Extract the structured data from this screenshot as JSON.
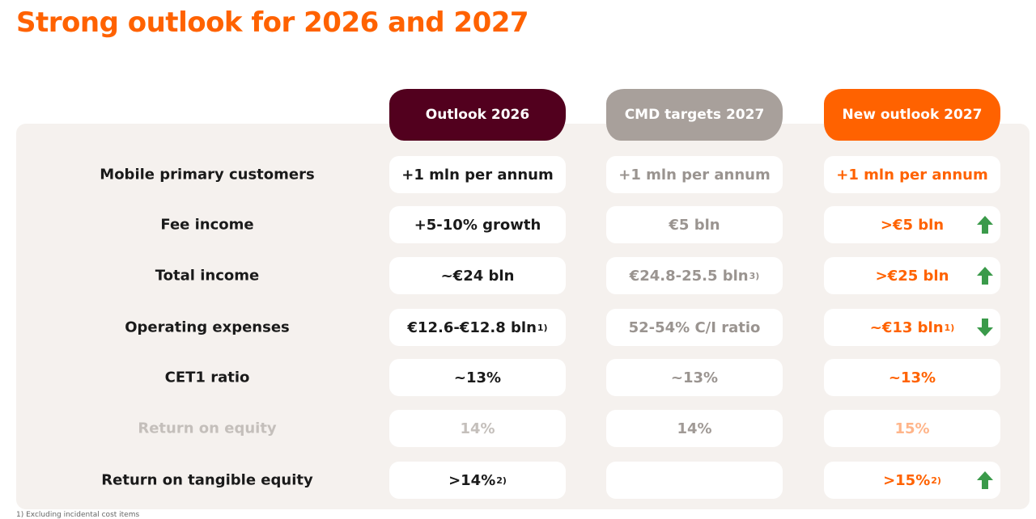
{
  "title": "Strong outlook for 2026 and 2027",
  "table": {
    "columns": [
      "Outlook 2026",
      "CMD targets 2027",
      "New outlook 2027"
    ],
    "rows": [
      {
        "label": "Mobile primary customers",
        "cells": [
          {
            "text": "+1 mln per annum"
          },
          {
            "text": "+1 mln per annum"
          },
          {
            "text": "+1 mln per annum"
          }
        ]
      },
      {
        "label": "Fee income",
        "cells": [
          {
            "text": "+5-10% growth"
          },
          {
            "text": "€5 bln"
          },
          {
            "text": ">€5 bln",
            "trend": "up"
          }
        ]
      },
      {
        "label": "Total income",
        "cells": [
          {
            "text": "~€24 bln"
          },
          {
            "text": "€24.8-25.5 bln",
            "note": "3)"
          },
          {
            "text": ">€25 bln",
            "trend": "up"
          }
        ]
      },
      {
        "label": "Operating expenses",
        "cells": [
          {
            "text": "€12.6-€12.8 bln",
            "note": "1)"
          },
          {
            "text": "52-54% C/I ratio"
          },
          {
            "text": "~€13 bln",
            "note": "1)",
            "trend": "down"
          }
        ]
      },
      {
        "label": "CET1 ratio",
        "cells": [
          {
            "text": "~13%"
          },
          {
            "text": "~13%"
          },
          {
            "text": "~13%"
          }
        ]
      },
      {
        "label": "Return on equity",
        "muted": true,
        "cells": [
          {
            "text": "14%"
          },
          {
            "text": "14%"
          },
          {
            "text": "15%"
          }
        ]
      },
      {
        "label": "Return on tangible equity",
        "cells": [
          {
            "text": ">14%",
            "note": "2)"
          },
          {
            "text": null
          },
          {
            "text": ">15%",
            "note": "2)",
            "trend": "up"
          }
        ]
      }
    ]
  },
  "footnote": "1) Excluding incidental cost items"
}
